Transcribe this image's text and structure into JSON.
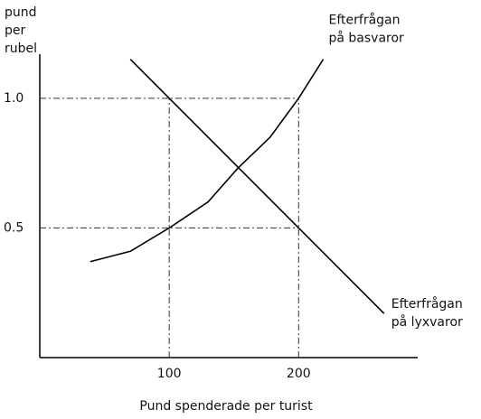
{
  "chart_data": {
    "type": "line",
    "ylabel_lines": [
      "pund",
      "per",
      "rubel"
    ],
    "xlabel": "Pund spenderade per turist",
    "series": [
      {
        "name": "Efterfrågan på basvaror",
        "color": "#000000",
        "x": [
          39,
          70,
          100,
          130,
          153,
          178,
          200,
          219
        ],
        "values": [
          0.37,
          0.41,
          0.5,
          0.6,
          0.73,
          0.85,
          1.0,
          1.15
        ]
      },
      {
        "name": "Efterfrågan på lyxvaror",
        "color": "#000000",
        "x": [
          70,
          100,
          200,
          266
        ],
        "values": [
          1.15,
          1.0,
          0.5,
          0.17
        ]
      }
    ],
    "xlim": [
      0,
      292
    ],
    "ylim": [
      0,
      1.17
    ],
    "xticks": [
      100,
      200
    ],
    "yticks": [
      {
        "value": 1,
        "label": "1.0"
      },
      0.5
    ],
    "grid": true
  }
}
